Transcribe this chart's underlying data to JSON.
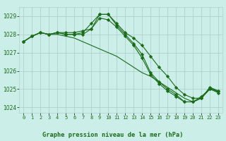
{
  "title": "Graphe pression niveau de la mer (hPa)",
  "bg_color": "#cceee8",
  "grid_color": "#b0d0cc",
  "line_color": "#1a6b1a",
  "marker_color": "#1a6b1a",
  "xlim": [
    -0.5,
    23.5
  ],
  "ylim": [
    1023.7,
    1029.5
  ],
  "yticks": [
    1024,
    1025,
    1026,
    1027,
    1028,
    1029
  ],
  "xticks": [
    0,
    1,
    2,
    3,
    4,
    5,
    6,
    7,
    8,
    9,
    10,
    11,
    12,
    13,
    14,
    15,
    16,
    17,
    18,
    19,
    20,
    21,
    22,
    23
  ],
  "series": [
    [
      1027.6,
      1027.9,
      1028.1,
      1028.0,
      1028.1,
      1028.0,
      1028.0,
      1028.1,
      1028.6,
      1029.1,
      1029.1,
      1028.6,
      1028.1,
      1027.8,
      1027.4,
      1026.8,
      1026.2,
      1025.7,
      1025.1,
      1024.7,
      1024.5,
      1024.5,
      1025.1,
      1024.9
    ],
    [
      1027.6,
      1027.9,
      1028.1,
      1028.0,
      1028.1,
      1028.1,
      1028.1,
      1028.2,
      1028.3,
      1028.9,
      1028.8,
      1028.4,
      1027.9,
      1027.4,
      1026.7,
      1025.8,
      1025.3,
      1024.9,
      1024.6,
      1024.3,
      1024.3,
      1024.5,
      1025.0,
      1024.8
    ],
    [
      1027.6,
      1027.9,
      1028.1,
      1028.0,
      1028.1,
      1028.0,
      1028.0,
      1028.0,
      1028.3,
      1029.1,
      1029.1,
      1028.5,
      1028.0,
      1027.5,
      1026.9,
      1025.9,
      1025.4,
      1025.0,
      1024.7,
      1024.3,
      1024.3,
      1024.6,
      1025.0,
      1024.9
    ],
    [
      1027.6,
      1027.9,
      1028.1,
      1028.0,
      1028.0,
      1027.9,
      1027.8,
      1027.6,
      1027.4,
      1027.2,
      1027.0,
      1026.8,
      1026.5,
      1026.2,
      1025.9,
      1025.7,
      1025.4,
      1025.1,
      1024.8,
      1024.5,
      1024.3,
      1024.5,
      1025.1,
      1024.8
    ]
  ]
}
